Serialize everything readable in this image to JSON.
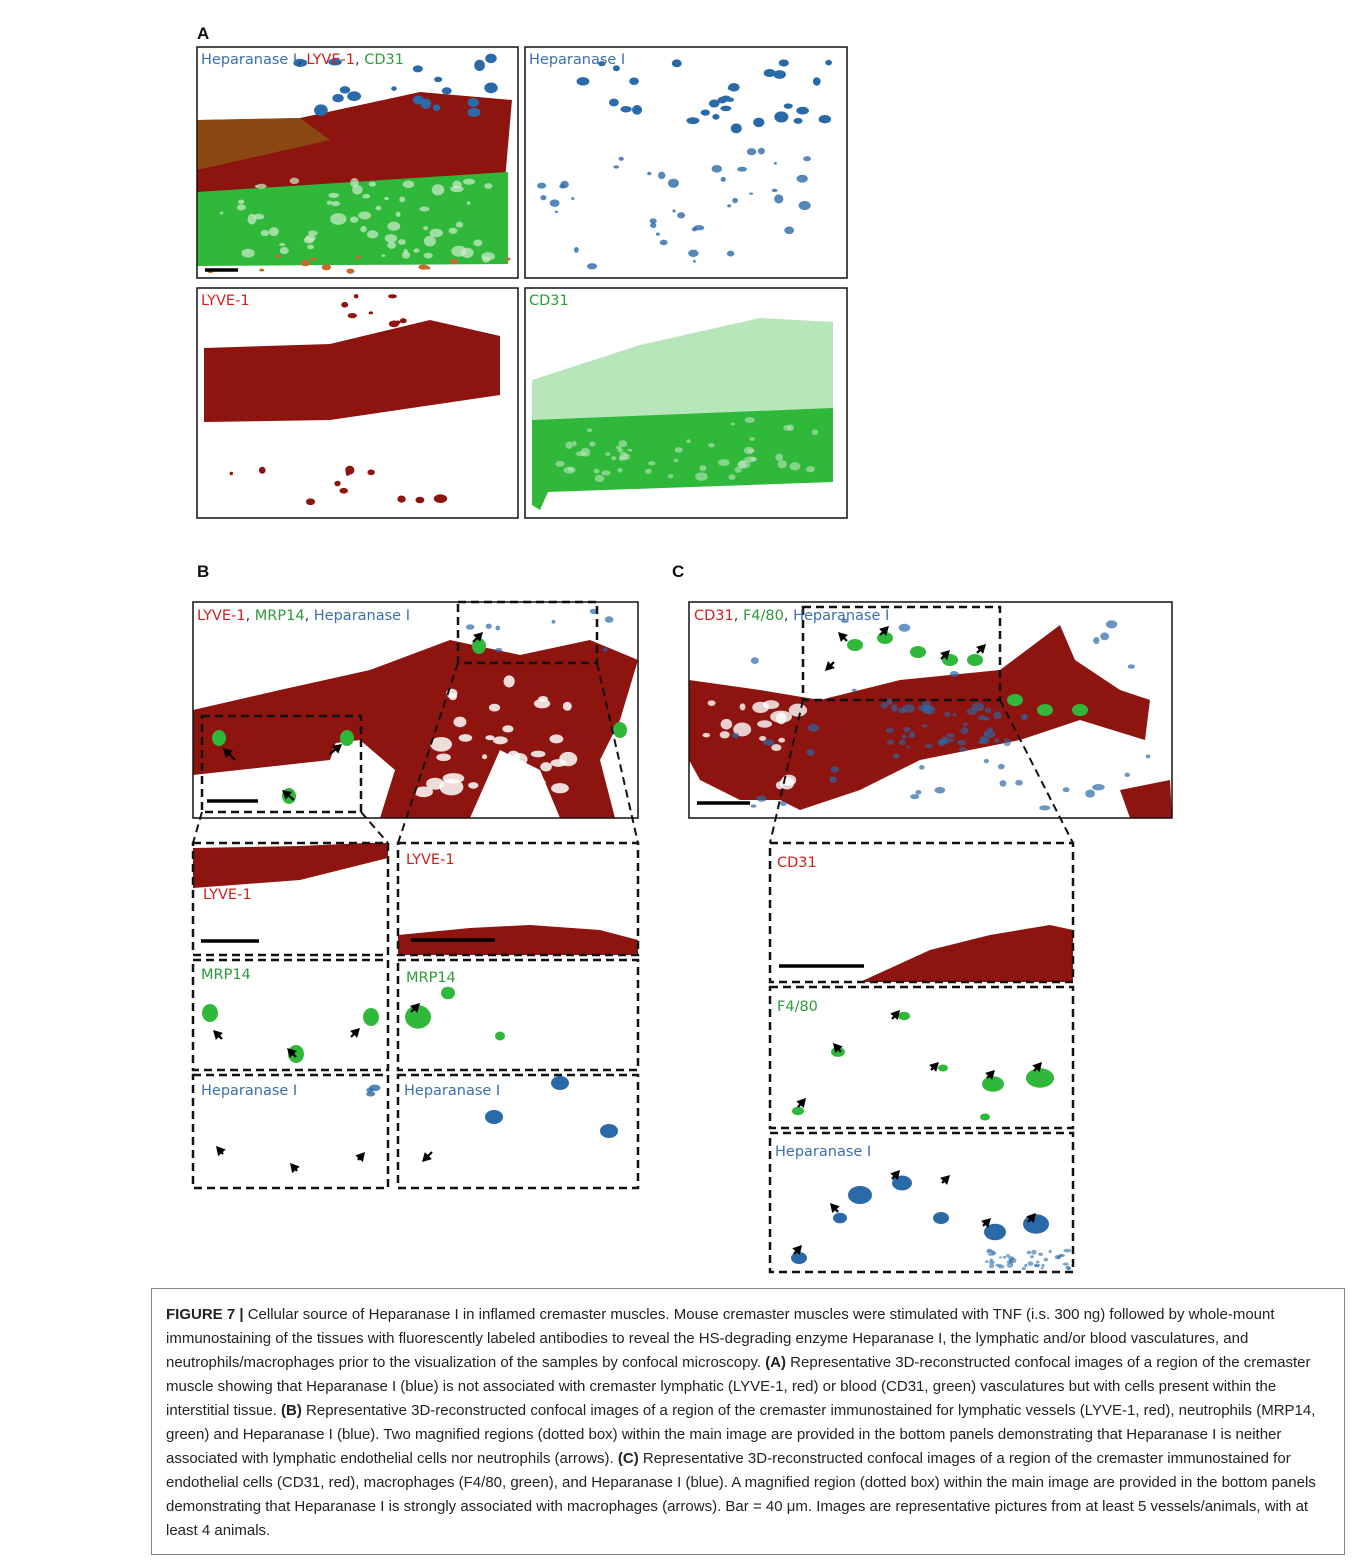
{
  "figure": {
    "panel_a": {
      "letter": "A",
      "images": [
        {
          "segments": [
            {
              "text": "Heparanase I",
              "color": "#3a6fb0"
            },
            {
              "text": ", ",
              "color": "#333333"
            },
            {
              "text": "LYVE-1",
              "color": "#d41e1e"
            },
            {
              "text": ", ",
              "color": "#333333"
            },
            {
              "text": "CD31",
              "color": "#2e9a3a"
            }
          ]
        },
        {
          "segments": [
            {
              "text": "Heparanase I",
              "color": "#3a6fb0"
            }
          ]
        },
        {
          "segments": [
            {
              "text": "LYVE-1",
              "color": "#d41e1e"
            }
          ]
        },
        {
          "segments": [
            {
              "text": "CD31",
              "color": "#2e9a3a"
            }
          ]
        }
      ]
    },
    "panel_b": {
      "letter": "B",
      "main": {
        "segments": [
          {
            "text": "LYVE-1",
            "color": "#d41e1e"
          },
          {
            "text": ", ",
            "color": "#333333"
          },
          {
            "text": "MRP14",
            "color": "#2e9a3a"
          },
          {
            "text": ", ",
            "color": "#333333"
          },
          {
            "text": "Heparanase I",
            "color": "#3a6fb0"
          }
        ]
      },
      "insets": [
        {
          "segments": [
            {
              "text": "LYVE-1",
              "color": "#d41e1e"
            }
          ]
        },
        {
          "segments": [
            {
              "text": "MRP14",
              "color": "#2e9a3a"
            }
          ]
        },
        {
          "segments": [
            {
              "text": "Heparanase I",
              "color": "#3a6fb0"
            }
          ]
        },
        {
          "segments": [
            {
              "text": "LYVE-1",
              "color": "#d41e1e"
            }
          ]
        },
        {
          "segments": [
            {
              "text": "MRP14",
              "color": "#2e9a3a"
            }
          ]
        },
        {
          "segments": [
            {
              "text": "Heparanase I",
              "color": "#3a6fb0"
            }
          ]
        }
      ]
    },
    "panel_c": {
      "letter": "C",
      "main": {
        "segments": [
          {
            "text": "CD31",
            "color": "#d41e1e"
          },
          {
            "text": ", ",
            "color": "#333333"
          },
          {
            "text": "F4/80",
            "color": "#2e9a3a"
          },
          {
            "text": ", ",
            "color": "#333333"
          },
          {
            "text": "Heparanase I",
            "color": "#3a6fb0"
          }
        ]
      },
      "insets": [
        {
          "segments": [
            {
              "text": "CD31",
              "color": "#d41e1e"
            }
          ]
        },
        {
          "segments": [
            {
              "text": "F4/80",
              "color": "#2e9a3a"
            }
          ]
        },
        {
          "segments": [
            {
              "text": "Heparanase I",
              "color": "#3a6fb0"
            }
          ]
        }
      ]
    },
    "caption": {
      "runs": [
        {
          "text": "FIGURE 7 | ",
          "bold": true
        },
        {
          "text": "Cellular source of Heparanase I in inflamed cremaster muscles. Mouse cremaster muscles were stimulated with TNF (i.s. 300 ng) followed by whole-mount immunostaining of the tissues with fluorescently labeled antibodies to reveal the HS-degrading enzyme Heparanase I, the lymphatic and/or blood vasculatures, and neutrophils/macrophages prior to the visualization of the samples by confocal microscopy. ",
          "bold": false
        },
        {
          "text": "(A)",
          "bold": true
        },
        {
          "text": " Representative 3D-reconstructed confocal images of a region of the cremaster muscle showing that Heparanase I (blue) is not associated with cremaster lymphatic (LYVE-1, red) or blood (CD31, green) vasculatures but with cells present within the interstitial tissue. ",
          "bold": false
        },
        {
          "text": "(B)",
          "bold": true
        },
        {
          "text": " Representative 3D-reconstructed confocal images of a region of the cremaster immunostained for lymphatic vessels (LYVE-1, red), neutrophils (MRP14, green) and Heparanase I (blue). Two magnified regions (dotted box) within the main image are provided in the bottom panels demonstrating that Heparanase I is neither associated with lymphatic endothelial cells nor neutrophils (arrows). ",
          "bold": false
        },
        {
          "text": "(C)",
          "bold": true
        },
        {
          "text": " Representative 3D-reconstructed confocal images of a region of the cremaster immunostained for endothelial cells (CD31, red), macrophages (F4/80, green), and Heparanase I (blue). A magnified region (dotted box) within the main image are provided in the bottom panels demonstrating that Heparanase I is strongly associated with macrophages (arrows). Bar = 40 μm. Images are representative pictures from at least 5 vessels/animals, with at least 4 animals.",
          "bold": false
        }
      ]
    }
  }
}
